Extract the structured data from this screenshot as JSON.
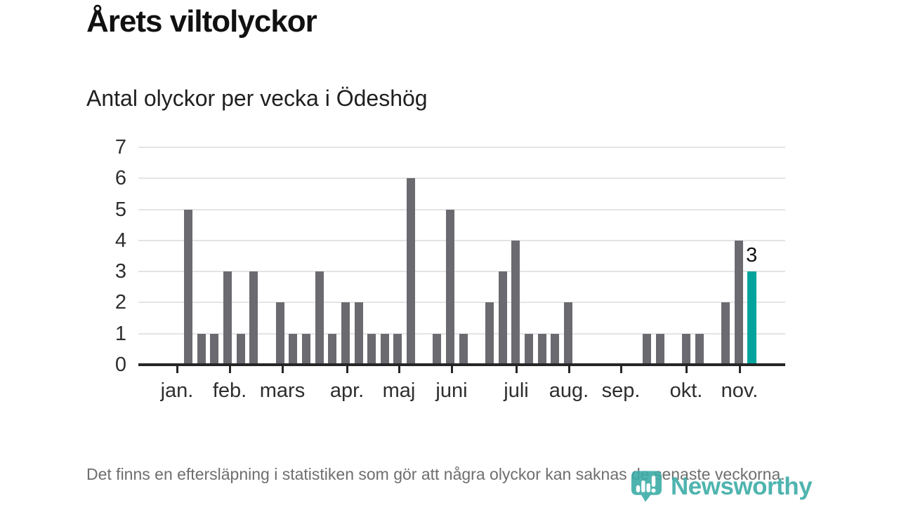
{
  "title": "Årets viltolyckor",
  "subtitle": "Antal olyckor per vecka i Ödeshög",
  "footer": {
    "text": "Det finns en eftersläpning i statistiken som gör att några olyckor kan saknas de senaste veckorna."
  },
  "logo": {
    "brand": "Newsworthy",
    "icon": "newsworthy-bubble-chart-icon"
  },
  "colors": {
    "bar": "#6a6a70",
    "highlight": "#00a49d",
    "axis": "#262626",
    "grid": "#e4e4e4",
    "label_text": "#2e2e2e",
    "title_text": "#111111",
    "muted_text": "#6e6e6e",
    "logo_teal": "#3daca7"
  },
  "chart_data": {
    "type": "bar",
    "title": "Årets viltolyckor",
    "subtitle": "Antal olyckor per vecka i Ödeshög",
    "xlabel": "",
    "ylabel": "",
    "x_unit": "vecka",
    "values": [
      5,
      1,
      1,
      3,
      1,
      3,
      0,
      2,
      1,
      1,
      3,
      1,
      2,
      2,
      1,
      1,
      1,
      6,
      0,
      1,
      5,
      1,
      0,
      2,
      3,
      4,
      1,
      1,
      1,
      2,
      0,
      0,
      0,
      0,
      0,
      1,
      1,
      0,
      1,
      1,
      0,
      2,
      4,
      3
    ],
    "highlight_index": 43,
    "highlight_label": "3",
    "months": [
      "jan.",
      "feb.",
      "mars",
      "apr.",
      "maj",
      "juni",
      "juli",
      "aug.",
      "sep.",
      "okt.",
      "nov."
    ],
    "y_ticks": [
      0,
      1,
      2,
      3,
      4,
      5,
      6,
      7
    ],
    "ylim": [
      0,
      7
    ],
    "grid": true,
    "legend": "none"
  }
}
